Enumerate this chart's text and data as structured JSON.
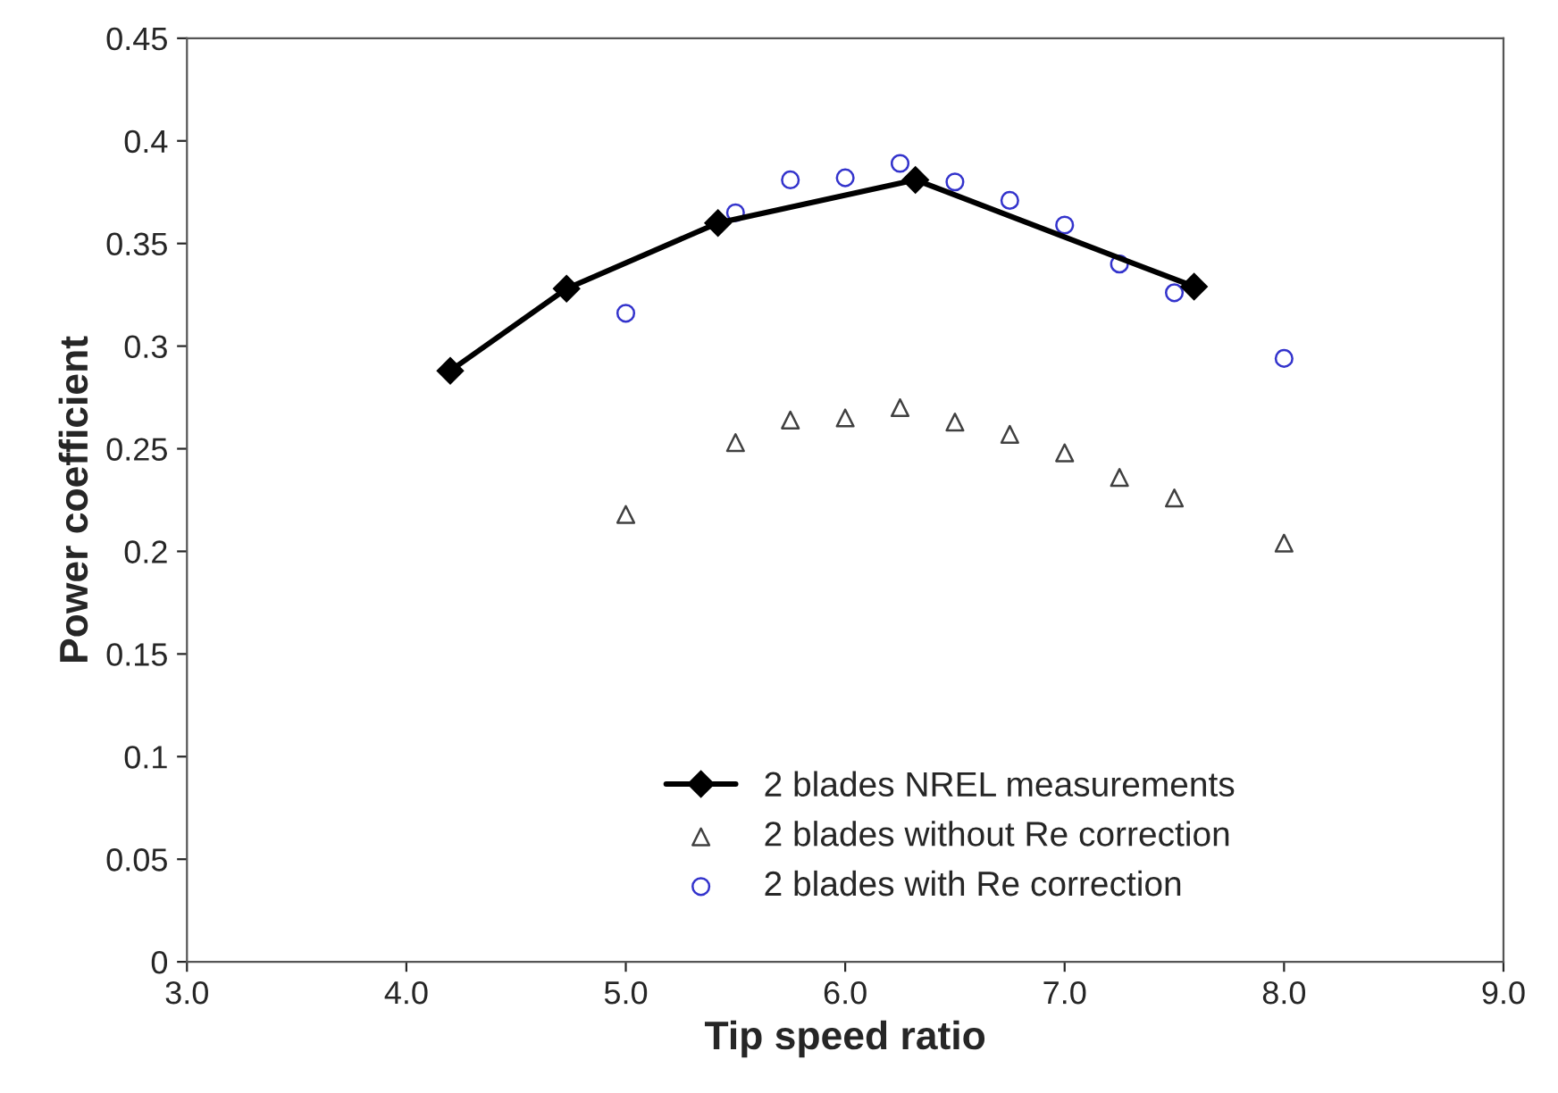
{
  "chart_data": {
    "type": "scatter",
    "xlabel": "Tip speed ratio",
    "ylabel": "Power coefficient",
    "xlim": [
      3.0,
      9.0
    ],
    "xticks": [
      {
        "value": 3,
        "label": "3.0"
      },
      {
        "value": 4,
        "label": "4.0"
      },
      {
        "value": 5,
        "label": "5.0"
      },
      {
        "value": 6,
        "label": "6.0"
      },
      {
        "value": 7,
        "label": "7.0"
      },
      {
        "value": 8,
        "label": "8.0"
      },
      {
        "value": 9,
        "label": "9.0"
      }
    ],
    "ylim": [
      0,
      0.45
    ],
    "yticks": [
      0,
      0.05,
      0.1,
      0.15,
      0.2,
      0.25,
      0.3,
      0.35,
      0.4,
      0.45
    ],
    "grid": false,
    "legend": "bottom right",
    "series": [
      {
        "name": "2 blades NREL measurements",
        "type": "line",
        "marker": "diamond",
        "color": "#000000",
        "x": [
          4.2,
          4.73,
          5.42,
          6.32,
          7.59
        ],
        "values": [
          0.288,
          0.328,
          0.36,
          0.381,
          0.329
        ]
      },
      {
        "name": "2 blades without Re correction",
        "marker": "triangle",
        "color": "#404040",
        "x": [
          5.0,
          5.5,
          5.75,
          6.0,
          6.25,
          6.5,
          6.75,
          7.0,
          7.25,
          7.5,
          8.0
        ],
        "values": [
          0.218,
          0.253,
          0.264,
          0.265,
          0.27,
          0.263,
          0.257,
          0.248,
          0.236,
          0.226,
          0.204
        ]
      },
      {
        "name": "2 blades with Re correction",
        "marker": "circle",
        "color": "#3333cc",
        "x": [
          5.0,
          5.5,
          5.75,
          6.0,
          6.25,
          6.5,
          6.75,
          7.0,
          7.25,
          7.5,
          8.0
        ],
        "values": [
          0.316,
          0.365,
          0.381,
          0.382,
          0.389,
          0.38,
          0.371,
          0.359,
          0.34,
          0.326,
          0.294
        ]
      }
    ]
  }
}
